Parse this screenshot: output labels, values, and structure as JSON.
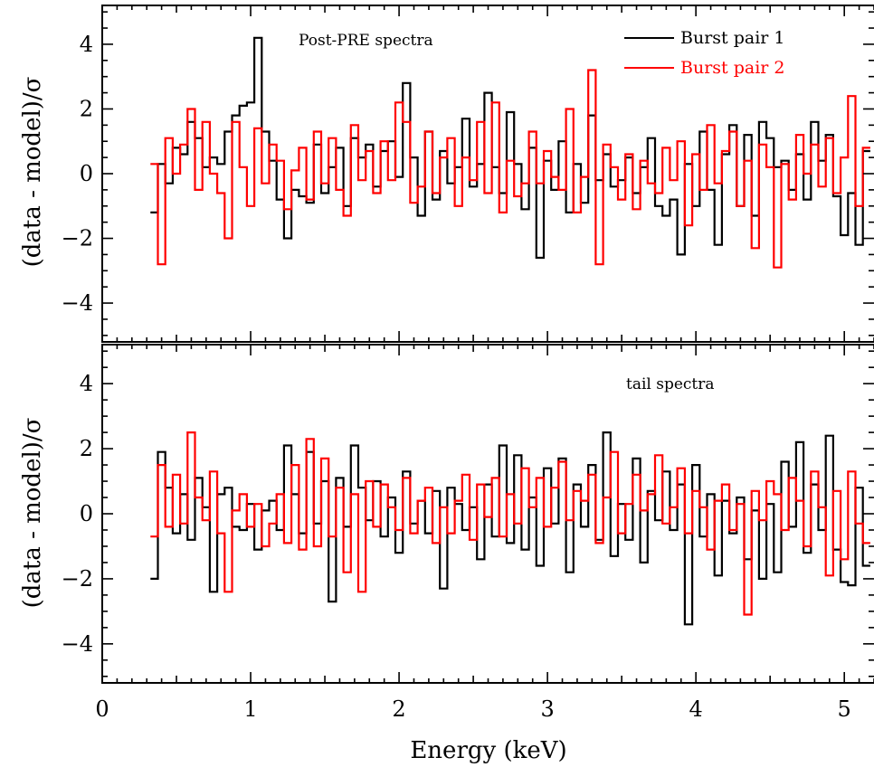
{
  "chart_data": {
    "type": "line",
    "style": "step",
    "xlabel": "Energy (keV)",
    "xlim": [
      0,
      5.2
    ],
    "x_ticks": [
      "0",
      "1",
      "2",
      "3",
      "4",
      "5"
    ],
    "legend": {
      "placement": "top-right",
      "entries": [
        {
          "label": "Burst pair 1",
          "color": "#000000"
        },
        {
          "label": "Burst pair 2",
          "color": "#ff0000"
        }
      ]
    },
    "panels": [
      {
        "title": "Post-PRE spectra",
        "ylabel": "(data - model)/σ",
        "ylim": [
          -5.2,
          5.2
        ],
        "y_ticks": [
          "4",
          "2",
          "0",
          "−2",
          "−4"
        ],
        "series": [
          {
            "name": "Burst pair 1",
            "color": "#000000",
            "x": [
              0.35,
              0.4,
              0.45,
              0.5,
              0.55,
              0.6,
              0.65,
              0.7,
              0.75,
              0.8,
              0.85,
              0.9,
              0.95,
              1.0,
              1.05,
              1.1,
              1.15,
              1.2,
              1.25,
              1.3,
              1.35,
              1.4,
              1.45,
              1.5,
              1.55,
              1.6,
              1.65,
              1.7,
              1.75,
              1.8,
              1.85,
              1.9,
              1.95,
              2.0,
              2.05,
              2.1,
              2.15,
              2.2,
              2.25,
              2.3,
              2.35,
              2.4,
              2.45,
              2.5,
              2.55,
              2.6,
              2.65,
              2.7,
              2.75,
              2.8,
              2.85,
              2.9,
              2.95,
              3.0,
              3.05,
              3.1,
              3.15,
              3.2,
              3.25,
              3.3,
              3.35,
              3.4,
              3.45,
              3.5,
              3.55,
              3.6,
              3.65,
              3.7,
              3.75,
              3.8,
              3.85,
              3.9,
              3.95,
              4.0,
              4.05,
              4.1,
              4.15,
              4.2,
              4.25,
              4.3,
              4.35,
              4.4,
              4.45,
              4.5,
              4.55,
              4.6,
              4.65,
              4.7,
              4.75,
              4.8,
              4.85,
              4.9,
              4.95,
              5.0,
              5.05,
              5.1,
              5.15
            ],
            "values": [
              -1.2,
              0.3,
              -0.3,
              0.8,
              0.6,
              1.6,
              1.1,
              0.2,
              0.5,
              0.3,
              1.3,
              1.8,
              2.1,
              2.2,
              4.2,
              1.3,
              0.4,
              -0.8,
              -2.0,
              -0.5,
              -0.7,
              -0.9,
              0.9,
              -0.6,
              0.2,
              0.8,
              -1.0,
              1.1,
              0.5,
              0.9,
              -0.4,
              0.7,
              1.0,
              -0.1,
              2.8,
              0.5,
              -1.3,
              1.3,
              -0.8,
              0.7,
              -0.3,
              0.2,
              1.7,
              -0.4,
              0.3,
              2.5,
              0.2,
              -0.6,
              1.9,
              0.3,
              -1.1,
              0.8,
              -2.6,
              0.4,
              -0.5,
              1.0,
              -1.2,
              0.3,
              -0.9,
              1.8,
              -0.2,
              0.6,
              -0.4,
              -0.2,
              0.5,
              -0.6,
              0.2,
              1.1,
              -1.0,
              -1.3,
              -0.8,
              -2.5,
              0.3,
              -1.0,
              1.3,
              -0.5,
              -2.2,
              0.6,
              1.5,
              -1.0,
              1.2,
              -1.3,
              1.6,
              1.1,
              0.2,
              0.4,
              -0.5,
              0.6,
              -0.8,
              1.6,
              0.4,
              1.2,
              -0.7,
              -1.9,
              -0.6,
              -2.2,
              0.7
            ]
          },
          {
            "name": "Burst pair 2",
            "color": "#ff0000",
            "x": [
              0.35,
              0.4,
              0.45,
              0.5,
              0.55,
              0.6,
              0.65,
              0.7,
              0.75,
              0.8,
              0.85,
              0.9,
              0.95,
              1.0,
              1.05,
              1.1,
              1.15,
              1.2,
              1.25,
              1.3,
              1.35,
              1.4,
              1.45,
              1.5,
              1.55,
              1.6,
              1.65,
              1.7,
              1.75,
              1.8,
              1.85,
              1.9,
              1.95,
              2.0,
              2.05,
              2.1,
              2.15,
              2.2,
              2.25,
              2.3,
              2.35,
              2.4,
              2.45,
              2.5,
              2.55,
              2.6,
              2.65,
              2.7,
              2.75,
              2.8,
              2.85,
              2.9,
              2.95,
              3.0,
              3.05,
              3.1,
              3.15,
              3.2,
              3.25,
              3.3,
              3.35,
              3.4,
              3.45,
              3.5,
              3.55,
              3.6,
              3.65,
              3.7,
              3.75,
              3.8,
              3.85,
              3.9,
              3.95,
              4.0,
              4.05,
              4.1,
              4.15,
              4.2,
              4.25,
              4.3,
              4.35,
              4.4,
              4.45,
              4.5,
              4.55,
              4.6,
              4.65,
              4.7,
              4.75,
              4.8,
              4.85,
              4.9,
              4.95,
              5.0,
              5.05,
              5.1,
              5.15
            ],
            "values": [
              0.3,
              -2.8,
              1.1,
              0.0,
              0.9,
              2.0,
              -0.5,
              1.6,
              0.0,
              -0.6,
              -2.0,
              1.6,
              0.2,
              -1.0,
              1.4,
              -0.3,
              0.9,
              0.4,
              -1.1,
              0.1,
              0.8,
              -0.8,
              1.3,
              -0.3,
              1.1,
              -0.5,
              -1.3,
              1.5,
              -0.2,
              0.7,
              -0.6,
              1.0,
              -0.2,
              2.2,
              1.6,
              -0.9,
              -0.4,
              1.3,
              -0.6,
              0.5,
              1.1,
              -1.0,
              0.5,
              -0.2,
              1.6,
              -0.6,
              2.2,
              -1.2,
              0.4,
              -0.7,
              -0.3,
              1.3,
              -0.3,
              0.7,
              -0.1,
              -0.5,
              2.0,
              -1.2,
              -0.1,
              3.2,
              -2.8,
              0.9,
              0.2,
              -0.8,
              0.6,
              -1.1,
              0.4,
              -0.3,
              -0.6,
              0.8,
              -0.2,
              1.0,
              -1.6,
              0.6,
              -0.5,
              1.5,
              -0.3,
              0.7,
              1.3,
              -1.0,
              0.4,
              -2.3,
              0.9,
              0.2,
              -2.9,
              0.3,
              -0.8,
              1.2,
              0.0,
              0.9,
              -0.4,
              1.1,
              -0.6,
              0.5,
              2.4,
              -1.0,
              0.8
            ]
          }
        ]
      },
      {
        "title": "tail spectra",
        "ylabel": "(data - model)/σ",
        "ylim": [
          -5.2,
          5.2
        ],
        "y_ticks": [
          "4",
          "2",
          "0",
          "−2",
          "−4"
        ],
        "series": [
          {
            "name": "Burst pair 1",
            "color": "#000000",
            "x": [
              0.35,
              0.4,
              0.45,
              0.5,
              0.55,
              0.6,
              0.65,
              0.7,
              0.75,
              0.8,
              0.85,
              0.9,
              0.95,
              1.0,
              1.05,
              1.1,
              1.15,
              1.2,
              1.25,
              1.3,
              1.35,
              1.4,
              1.45,
              1.5,
              1.55,
              1.6,
              1.65,
              1.7,
              1.75,
              1.8,
              1.85,
              1.9,
              1.95,
              2.0,
              2.05,
              2.1,
              2.15,
              2.2,
              2.25,
              2.3,
              2.35,
              2.4,
              2.45,
              2.5,
              2.55,
              2.6,
              2.65,
              2.7,
              2.75,
              2.8,
              2.85,
              2.9,
              2.95,
              3.0,
              3.05,
              3.1,
              3.15,
              3.2,
              3.25,
              3.3,
              3.35,
              3.4,
              3.45,
              3.5,
              3.55,
              3.6,
              3.65,
              3.7,
              3.75,
              3.8,
              3.85,
              3.9,
              3.95,
              4.0,
              4.05,
              4.1,
              4.15,
              4.2,
              4.25,
              4.3,
              4.35,
              4.4,
              4.45,
              4.5,
              4.55,
              4.6,
              4.65,
              4.7,
              4.75,
              4.8,
              4.85,
              4.9,
              4.95,
              5.0,
              5.05,
              5.1,
              5.15
            ],
            "values": [
              -2.0,
              1.9,
              0.8,
              -0.6,
              0.6,
              -0.8,
              1.1,
              0.2,
              -2.4,
              0.6,
              0.8,
              -0.4,
              -0.5,
              0.3,
              -1.1,
              0.1,
              0.4,
              -0.5,
              2.1,
              0.6,
              -0.6,
              1.9,
              -0.3,
              1.0,
              -2.7,
              1.1,
              -0.4,
              2.1,
              0.8,
              -0.2,
              1.0,
              -0.7,
              0.5,
              -1.2,
              1.3,
              -0.3,
              0.4,
              -0.6,
              0.7,
              -2.3,
              0.8,
              0.3,
              -0.5,
              0.2,
              -1.4,
              0.9,
              -0.7,
              2.1,
              -0.9,
              1.8,
              -1.1,
              0.5,
              -1.6,
              1.4,
              -0.3,
              1.7,
              -1.8,
              0.9,
              -0.4,
              1.5,
              -0.8,
              2.5,
              -1.3,
              0.3,
              -0.8,
              1.7,
              -1.5,
              0.7,
              -0.2,
              1.3,
              -0.5,
              0.9,
              -3.4,
              1.5,
              -0.7,
              0.6,
              -1.9,
              0.4,
              -0.6,
              0.5,
              -1.4,
              0.1,
              -2.0,
              0.3,
              -1.8,
              1.6,
              -0.4,
              2.2,
              -1.2,
              0.9,
              -0.5,
              2.4,
              -1.1,
              -2.1,
              -2.2,
              0.8,
              -1.6
            ]
          },
          {
            "name": "Burst pair 2",
            "color": "#ff0000",
            "x": [
              0.35,
              0.4,
              0.45,
              0.5,
              0.55,
              0.6,
              0.65,
              0.7,
              0.75,
              0.8,
              0.85,
              0.9,
              0.95,
              1.0,
              1.05,
              1.1,
              1.15,
              1.2,
              1.25,
              1.3,
              1.35,
              1.4,
              1.45,
              1.5,
              1.55,
              1.6,
              1.65,
              1.7,
              1.75,
              1.8,
              1.85,
              1.9,
              1.95,
              2.0,
              2.05,
              2.1,
              2.15,
              2.2,
              2.25,
              2.3,
              2.35,
              2.4,
              2.45,
              2.5,
              2.55,
              2.6,
              2.65,
              2.7,
              2.75,
              2.8,
              2.85,
              2.9,
              2.95,
              3.0,
              3.05,
              3.1,
              3.15,
              3.2,
              3.25,
              3.3,
              3.35,
              3.4,
              3.45,
              3.5,
              3.55,
              3.6,
              3.65,
              3.7,
              3.75,
              3.8,
              3.85,
              3.9,
              3.95,
              4.0,
              4.05,
              4.1,
              4.15,
              4.2,
              4.25,
              4.3,
              4.35,
              4.4,
              4.45,
              4.5,
              4.55,
              4.6,
              4.65,
              4.7,
              4.75,
              4.8,
              4.85,
              4.9,
              4.95,
              5.0,
              5.05,
              5.1,
              5.15
            ],
            "values": [
              -0.7,
              1.5,
              -0.4,
              1.2,
              -0.3,
              2.5,
              0.5,
              -0.2,
              1.3,
              -0.6,
              -2.4,
              0.1,
              0.6,
              -0.4,
              0.3,
              -1.0,
              -0.3,
              0.6,
              -0.9,
              1.5,
              -1.1,
              2.3,
              -1.0,
              1.7,
              -0.7,
              0.8,
              -1.8,
              0.6,
              -2.4,
              1.0,
              -0.4,
              0.9,
              0.2,
              -0.5,
              1.1,
              -0.6,
              0.4,
              0.8,
              -0.9,
              0.2,
              -0.6,
              0.4,
              1.2,
              -0.8,
              0.9,
              -0.1,
              1.1,
              -0.7,
              0.6,
              -0.3,
              1.4,
              0.2,
              1.1,
              -0.4,
              0.8,
              1.6,
              -0.2,
              0.7,
              0.4,
              1.2,
              -0.9,
              0.5,
              1.9,
              -0.6,
              0.3,
              1.2,
              0.1,
              0.6,
              1.8,
              -0.3,
              0.2,
              1.4,
              -0.6,
              0.7,
              0.2,
              -1.1,
              0.4,
              0.9,
              -0.5,
              0.3,
              -3.1,
              0.7,
              -0.2,
              1.0,
              0.6,
              -0.5,
              1.1,
              0.4,
              -1.0,
              1.3,
              0.2,
              -1.9,
              0.7,
              -1.4,
              1.3,
              -0.3,
              -0.9
            ]
          }
        ]
      }
    ]
  }
}
